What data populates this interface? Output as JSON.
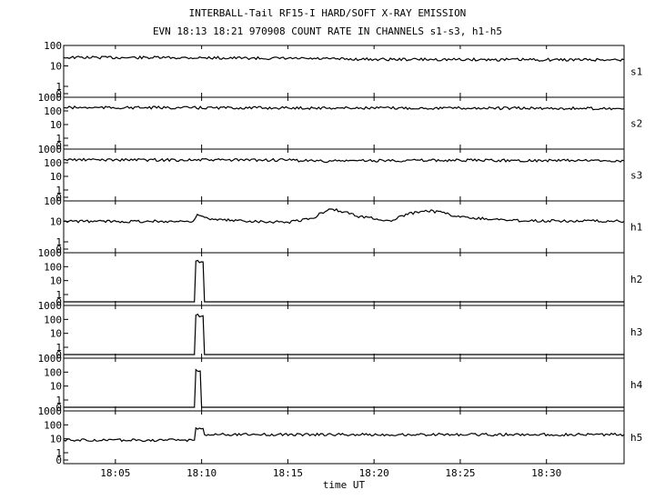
{
  "header": {
    "title": "INTERBALL-Tail RF15-I HARD/SOFT X-RAY EMISSION",
    "subtitle": "EVN 18:13 18:21 970908  COUNT RATE IN CHANNELS s1-s3, h1-h5"
  },
  "chart_data": {
    "type": "line",
    "title": "INTERBALL-Tail RF15-I HARD/SOFT X-RAY EMISSION",
    "subtitle": "EVN 18:13 18:21 970908  COUNT RATE IN CHANNELS s1-s3, h1-h5",
    "xlabel": "time UT",
    "x_ticks": [
      "18:05",
      "18:10",
      "18:15",
      "18:20",
      "18:25",
      "18:30"
    ],
    "xlim": [
      "18:02",
      "18:34:30"
    ],
    "grid": false,
    "panels": [
      {
        "name": "s1",
        "yticks": [
          "100",
          "10",
          "1",
          "0"
        ],
        "ylim": [
          0,
          100
        ],
        "yscale": "log",
        "points": [
          [
            "18:02",
            26
          ],
          [
            "18:10",
            25
          ],
          [
            "18:20",
            21
          ],
          [
            "18:30",
            20
          ],
          [
            "18:34:30",
            20
          ]
        ]
      },
      {
        "name": "s2",
        "yticks": [
          "1000",
          "100",
          "10",
          "1",
          "0"
        ],
        "ylim": [
          0,
          1000
        ],
        "yscale": "log",
        "points": [
          [
            "18:02",
            175
          ],
          [
            "18:15",
            165
          ],
          [
            "18:25",
            160
          ],
          [
            "18:34:30",
            150
          ]
        ]
      },
      {
        "name": "s3",
        "yticks": [
          "1000",
          "100",
          "10",
          "1",
          "0"
        ],
        "ylim": [
          0,
          1000
        ],
        "yscale": "log",
        "points": [
          [
            "18:02",
            165
          ],
          [
            "18:15",
            155
          ],
          [
            "18:17",
            130
          ],
          [
            "18:20",
            145
          ],
          [
            "18:25",
            150
          ],
          [
            "18:34:30",
            140
          ]
        ]
      },
      {
        "name": "h1",
        "yticks": [
          "100",
          "10",
          "1",
          "0"
        ],
        "ylim": [
          0,
          100
        ],
        "yscale": "log",
        "points": [
          [
            "18:02",
            10
          ],
          [
            "18:09:30",
            10
          ],
          [
            "18:09:45",
            22
          ],
          [
            "18:10:30",
            12
          ],
          [
            "18:15",
            9
          ],
          [
            "18:16:30",
            14
          ],
          [
            "18:17:30",
            40
          ],
          [
            "18:19",
            18
          ],
          [
            "18:21",
            10
          ],
          [
            "18:23",
            35
          ],
          [
            "18:25",
            16
          ],
          [
            "18:28",
            11
          ],
          [
            "18:34:30",
            10
          ]
        ]
      },
      {
        "name": "h2",
        "yticks": [
          "1000",
          "100",
          "10",
          "1",
          "0"
        ],
        "ylim": [
          0,
          1000
        ],
        "yscale": "log",
        "points": [
          [
            "18:02",
            0
          ],
          [
            "18:09:35",
            0
          ],
          [
            "18:09:40",
            250
          ],
          [
            "18:10:05",
            220
          ],
          [
            "18:10:10",
            0
          ],
          [
            "18:34:30",
            0
          ]
        ]
      },
      {
        "name": "h3",
        "yticks": [
          "1000",
          "100",
          "10",
          "1",
          "0"
        ],
        "ylim": [
          0,
          1000
        ],
        "yscale": "log",
        "points": [
          [
            "18:02",
            0
          ],
          [
            "18:09:35",
            0
          ],
          [
            "18:09:40",
            200
          ],
          [
            "18:10:05",
            180
          ],
          [
            "18:10:10",
            0
          ],
          [
            "18:34:30",
            0
          ]
        ]
      },
      {
        "name": "h4",
        "yticks": [
          "1000",
          "100",
          "10",
          "1",
          "0"
        ],
        "ylim": [
          0,
          1000
        ],
        "yscale": "log",
        "points": [
          [
            "18:02",
            0
          ],
          [
            "18:09:35",
            0
          ],
          [
            "18:09:40",
            150
          ],
          [
            "18:09:55",
            120
          ],
          [
            "18:10",
            0
          ],
          [
            "18:34:30",
            0
          ]
        ]
      },
      {
        "name": "h5",
        "yticks": [
          "1000",
          "100",
          "10",
          "1",
          "0"
        ],
        "ylim": [
          0,
          1000
        ],
        "yscale": "log",
        "points": [
          [
            "18:02",
            8
          ],
          [
            "18:09:35",
            8
          ],
          [
            "18:09:40",
            60
          ],
          [
            "18:10:05",
            55
          ],
          [
            "18:10:10",
            20
          ],
          [
            "18:34:30",
            20
          ]
        ]
      }
    ]
  }
}
